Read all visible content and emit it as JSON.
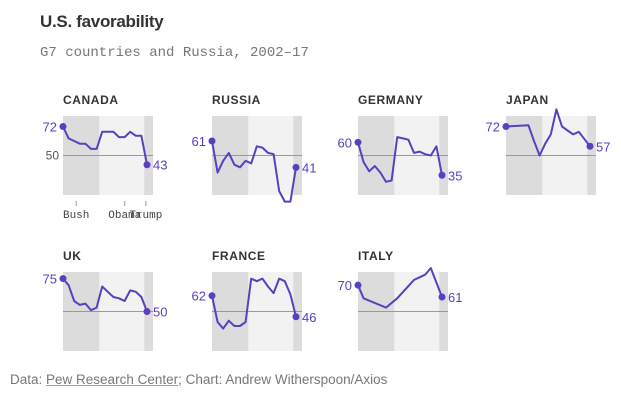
{
  "header": {
    "title": "U.S. favorability",
    "subtitle": "G7 countries and Russia, 2002–17"
  },
  "footer": {
    "prefix": "Data: ",
    "source_link": "Pew Research Center",
    "suffix": "; Chart: Andrew Witherspoon/Axios"
  },
  "colors": {
    "line": "#5a3fc0",
    "bush_band": "#dcdcdc",
    "obama_band": "#f2f2f2",
    "trump_band": "#dcdcdc",
    "reference_line": "#999999"
  },
  "chart_data": {
    "type": "line",
    "title": "U.S. favorability",
    "subtitle": "G7 countries and Russia, 2002–17",
    "xlabel": "",
    "ylabel": "",
    "x_range": [
      2002,
      2017
    ],
    "ylim": [
      20,
      80
    ],
    "reference_value": 50,
    "reference_label": "50",
    "eras": [
      {
        "name": "Bush",
        "start": 2002,
        "end": 2008.5
      },
      {
        "name": "Obama",
        "start": 2008.5,
        "end": 2016.5
      },
      {
        "name": "Trump",
        "start": 2016.5,
        "end": 2017
      }
    ],
    "series": [
      {
        "name": "CANADA",
        "start_label": "72",
        "end_label": "43",
        "x": [
          2002,
          2003,
          2005,
          2006,
          2007,
          2008,
          2009,
          2010,
          2011,
          2012,
          2013,
          2014,
          2015,
          2016,
          2017
        ],
        "values": [
          72,
          63,
          59,
          59,
          55,
          55,
          68,
          68,
          68,
          64,
          64,
          68,
          65,
          65,
          43
        ]
      },
      {
        "name": "RUSSIA",
        "start_label": "61",
        "end_label": "41",
        "x": [
          2002,
          2003,
          2004,
          2005,
          2006,
          2007,
          2008,
          2009,
          2010,
          2011,
          2012,
          2013,
          2014,
          2015,
          2016,
          2017
        ],
        "values": [
          61,
          37,
          46,
          52,
          43,
          41,
          46,
          44,
          57,
          56,
          52,
          51,
          23,
          15,
          15,
          41
        ]
      },
      {
        "name": "GERMANY",
        "start_label": "60",
        "end_label": "35",
        "x": [
          2002,
          2003,
          2004,
          2005,
          2006,
          2007,
          2008,
          2009,
          2010,
          2011,
          2012,
          2013,
          2014,
          2015,
          2016,
          2017
        ],
        "values": [
          60,
          45,
          38,
          42,
          37,
          30,
          31,
          64,
          63,
          62,
          52,
          53,
          51,
          50,
          57,
          35
        ]
      },
      {
        "name": "JAPAN",
        "start_label": "72",
        "end_label": "57",
        "x": [
          2002,
          2006,
          2007,
          2008,
          2009,
          2010,
          2011,
          2012,
          2013,
          2014,
          2015,
          2017
        ],
        "values": [
          72,
          73,
          61,
          50,
          59,
          66,
          85,
          72,
          69,
          66,
          68,
          57
        ]
      },
      {
        "name": "UK",
        "start_label": "75",
        "end_label": "50",
        "x": [
          2002,
          2003,
          2004,
          2005,
          2006,
          2007,
          2008,
          2009,
          2010,
          2011,
          2012,
          2013,
          2014,
          2015,
          2016,
          2017
        ],
        "values": [
          75,
          70,
          58,
          55,
          56,
          51,
          53,
          69,
          65,
          61,
          60,
          58,
          66,
          65,
          61,
          50
        ]
      },
      {
        "name": "FRANCE",
        "start_label": "62",
        "end_label": "46",
        "x": [
          2002,
          2003,
          2004,
          2005,
          2006,
          2007,
          2008,
          2009,
          2010,
          2011,
          2012,
          2013,
          2014,
          2015,
          2016,
          2017
        ],
        "values": [
          62,
          42,
          37,
          43,
          39,
          39,
          42,
          75,
          73,
          75,
          69,
          64,
          75,
          73,
          63,
          46
        ]
      },
      {
        "name": "ITALY",
        "start_label": "70",
        "end_label": "61",
        "x": [
          2002,
          2003,
          2007,
          2009,
          2012,
          2013,
          2014,
          2015,
          2016,
          2017
        ],
        "values": [
          70,
          60,
          53,
          60,
          74,
          76,
          78,
          83,
          72,
          61
        ]
      }
    ]
  }
}
